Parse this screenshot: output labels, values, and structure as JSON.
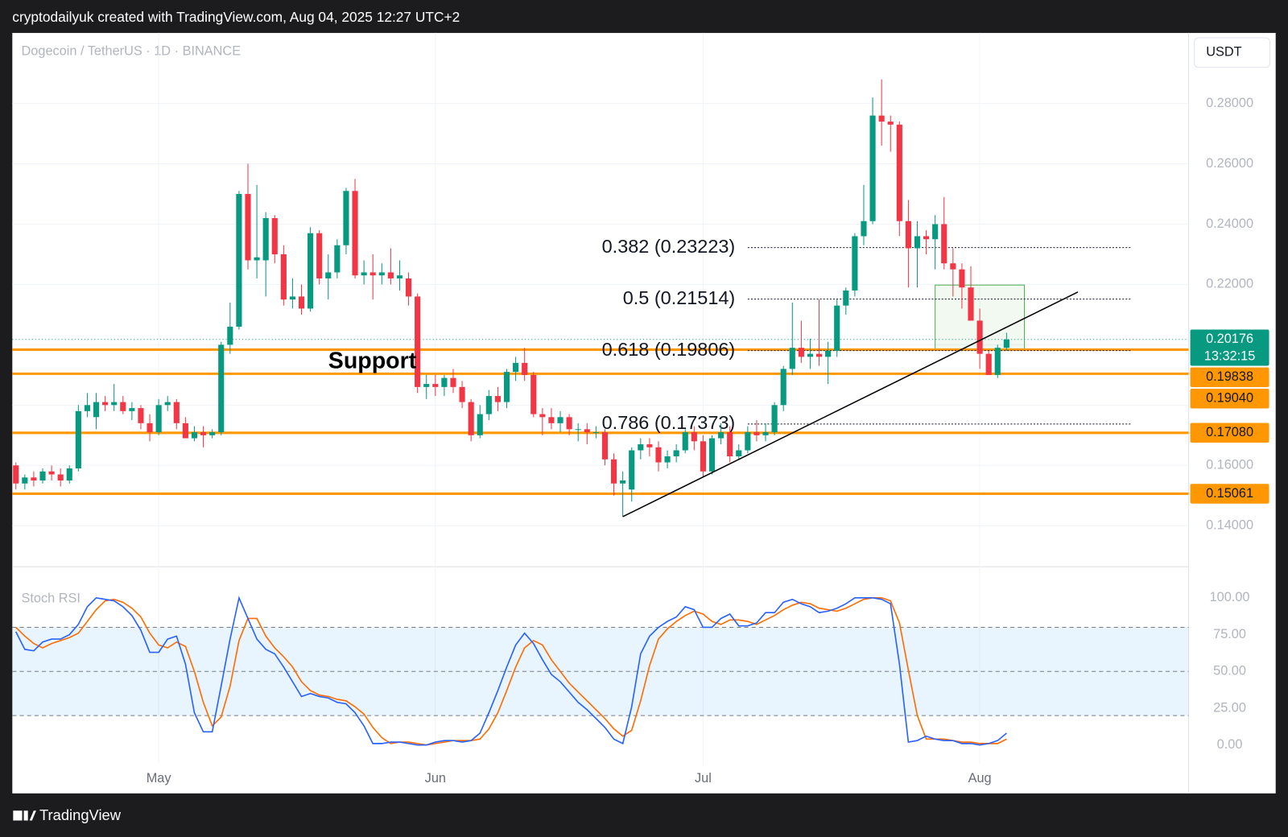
{
  "chart_data": {
    "type": "candlestick",
    "credit": "cryptodailyuk created with TradingView.com, Aug 04, 2025 12:27 UTC+2",
    "title": "Dogecoin / TetherUS · 1D · BINANCE",
    "currency": "USDT",
    "brand": "TradingView",
    "up_color": "#089981",
    "down_color": "#f23645",
    "xlim": [
      -0.4,
      131.4
    ],
    "xticks": [
      {
        "value": 16,
        "label": "May"
      },
      {
        "value": 47,
        "label": "Jun"
      },
      {
        "value": 77,
        "label": "Jul"
      },
      {
        "value": 108,
        "label": "Aug"
      }
    ],
    "ylim": [
      0.1264,
      0.3034
    ],
    "yticks": [
      {
        "value": 0.14,
        "label": "0.14000"
      },
      {
        "value": 0.16,
        "label": "0.16000"
      },
      {
        "value": 0.18,
        "label": "0.18000"
      },
      {
        "value": 0.2,
        "label": "0.20000"
      },
      {
        "value": 0.22,
        "label": "0.22000"
      },
      {
        "value": 0.24,
        "label": "0.24000"
      },
      {
        "value": 0.26,
        "label": "0.26000"
      },
      {
        "value": 0.28,
        "label": "0.28000"
      }
    ],
    "grid": true,
    "ohlc": [
      [
        0.16,
        0.161,
        0.152,
        0.154
      ],
      [
        0.154,
        0.157,
        0.152,
        0.156
      ],
      [
        0.156,
        0.158,
        0.153,
        0.155
      ],
      [
        0.155,
        0.159,
        0.154,
        0.158
      ],
      [
        0.158,
        0.16,
        0.155,
        0.157
      ],
      [
        0.157,
        0.159,
        0.153,
        0.155
      ],
      [
        0.155,
        0.16,
        0.154,
        0.159
      ],
      [
        0.159,
        0.18,
        0.158,
        0.178
      ],
      [
        0.178,
        0.184,
        0.176,
        0.18
      ],
      [
        0.176,
        0.184,
        0.172,
        0.181
      ],
      [
        0.181,
        0.183,
        0.178,
        0.18
      ],
      [
        0.18,
        0.187,
        0.178,
        0.181
      ],
      [
        0.181,
        0.183,
        0.177,
        0.178
      ],
      [
        0.178,
        0.181,
        0.175,
        0.179
      ],
      [
        0.179,
        0.18,
        0.172,
        0.174
      ],
      [
        0.174,
        0.177,
        0.168,
        0.171
      ],
      [
        0.171,
        0.182,
        0.17,
        0.18
      ],
      [
        0.18,
        0.183,
        0.178,
        0.181
      ],
      [
        0.181,
        0.182,
        0.172,
        0.174
      ],
      [
        0.174,
        0.176,
        0.169,
        0.169
      ],
      [
        0.169,
        0.173,
        0.168,
        0.171
      ],
      [
        0.171,
        0.173,
        0.166,
        0.17
      ],
      [
        0.17,
        0.172,
        0.169,
        0.171
      ],
      [
        0.171,
        0.201,
        0.17,
        0.2
      ],
      [
        0.2,
        0.214,
        0.197,
        0.206
      ],
      [
        0.206,
        0.251,
        0.205,
        0.25
      ],
      [
        0.25,
        0.26,
        0.225,
        0.228
      ],
      [
        0.228,
        0.253,
        0.222,
        0.229
      ],
      [
        0.228,
        0.244,
        0.216,
        0.242
      ],
      [
        0.242,
        0.243,
        0.227,
        0.23
      ],
      [
        0.23,
        0.233,
        0.213,
        0.215
      ],
      [
        0.215,
        0.222,
        0.212,
        0.216
      ],
      [
        0.216,
        0.22,
        0.21,
        0.212
      ],
      [
        0.212,
        0.239,
        0.211,
        0.237
      ],
      [
        0.237,
        0.238,
        0.22,
        0.222
      ],
      [
        0.222,
        0.23,
        0.215,
        0.224
      ],
      [
        0.224,
        0.235,
        0.222,
        0.233
      ],
      [
        0.233,
        0.252,
        0.23,
        0.251
      ],
      [
        0.251,
        0.255,
        0.222,
        0.223
      ],
      [
        0.223,
        0.228,
        0.22,
        0.224
      ],
      [
        0.224,
        0.23,
        0.215,
        0.223
      ],
      [
        0.223,
        0.227,
        0.22,
        0.224
      ],
      [
        0.224,
        0.232,
        0.22,
        0.222
      ],
      [
        0.222,
        0.228,
        0.218,
        0.223
      ],
      [
        0.222,
        0.224,
        0.213,
        0.216
      ],
      [
        0.216,
        0.217,
        0.184,
        0.186
      ],
      [
        0.186,
        0.19,
        0.182,
        0.187
      ],
      [
        0.187,
        0.19,
        0.183,
        0.186
      ],
      [
        0.186,
        0.19,
        0.183,
        0.189
      ],
      [
        0.189,
        0.192,
        0.184,
        0.186
      ],
      [
        0.186,
        0.188,
        0.179,
        0.181
      ],
      [
        0.181,
        0.182,
        0.168,
        0.17
      ],
      [
        0.17,
        0.18,
        0.169,
        0.177
      ],
      [
        0.177,
        0.185,
        0.175,
        0.183
      ],
      [
        0.183,
        0.186,
        0.178,
        0.181
      ],
      [
        0.181,
        0.192,
        0.179,
        0.191
      ],
      [
        0.191,
        0.196,
        0.188,
        0.194
      ],
      [
        0.194,
        0.199,
        0.188,
        0.19
      ],
      [
        0.19,
        0.191,
        0.176,
        0.177
      ],
      [
        0.177,
        0.179,
        0.17,
        0.176
      ],
      [
        0.176,
        0.179,
        0.172,
        0.174
      ],
      [
        0.174,
        0.178,
        0.171,
        0.176
      ],
      [
        0.176,
        0.177,
        0.17,
        0.172
      ],
      [
        0.172,
        0.174,
        0.168,
        0.172
      ],
      [
        0.172,
        0.174,
        0.167,
        0.171
      ],
      [
        0.171,
        0.173,
        0.169,
        0.171
      ],
      [
        0.171,
        0.172,
        0.16,
        0.162
      ],
      [
        0.162,
        0.164,
        0.15,
        0.154
      ],
      [
        0.154,
        0.158,
        0.143,
        0.155
      ],
      [
        0.152,
        0.166,
        0.148,
        0.165
      ],
      [
        0.165,
        0.169,
        0.162,
        0.167
      ],
      [
        0.167,
        0.169,
        0.163,
        0.166
      ],
      [
        0.166,
        0.168,
        0.158,
        0.161
      ],
      [
        0.161,
        0.165,
        0.159,
        0.163
      ],
      [
        0.163,
        0.167,
        0.161,
        0.165
      ],
      [
        0.165,
        0.172,
        0.164,
        0.171
      ],
      [
        0.171,
        0.173,
        0.165,
        0.168
      ],
      [
        0.168,
        0.17,
        0.156,
        0.158
      ],
      [
        0.158,
        0.17,
        0.157,
        0.169
      ],
      [
        0.169,
        0.174,
        0.167,
        0.171
      ],
      [
        0.171,
        0.173,
        0.161,
        0.163
      ],
      [
        0.163,
        0.167,
        0.162,
        0.165
      ],
      [
        0.165,
        0.173,
        0.164,
        0.171
      ],
      [
        0.171,
        0.175,
        0.168,
        0.17
      ],
      [
        0.17,
        0.174,
        0.168,
        0.171
      ],
      [
        0.171,
        0.181,
        0.17,
        0.18
      ],
      [
        0.18,
        0.193,
        0.178,
        0.192
      ],
      [
        0.192,
        0.214,
        0.19,
        0.199
      ],
      [
        0.199,
        0.208,
        0.194,
        0.196
      ],
      [
        0.196,
        0.202,
        0.192,
        0.197
      ],
      [
        0.197,
        0.215,
        0.193,
        0.196
      ],
      [
        0.196,
        0.201,
        0.187,
        0.198
      ],
      [
        0.198,
        0.215,
        0.196,
        0.213
      ],
      [
        0.213,
        0.219,
        0.21,
        0.218
      ],
      [
        0.218,
        0.237,
        0.216,
        0.236
      ],
      [
        0.236,
        0.253,
        0.233,
        0.241
      ],
      [
        0.241,
        0.282,
        0.24,
        0.276
      ],
      [
        0.276,
        0.288,
        0.266,
        0.274
      ],
      [
        0.274,
        0.276,
        0.264,
        0.273
      ],
      [
        0.273,
        0.274,
        0.236,
        0.241
      ],
      [
        0.241,
        0.248,
        0.219,
        0.232
      ],
      [
        0.232,
        0.241,
        0.219,
        0.236
      ],
      [
        0.236,
        0.238,
        0.23,
        0.235
      ],
      [
        0.235,
        0.243,
        0.225,
        0.24
      ],
      [
        0.24,
        0.249,
        0.225,
        0.227
      ],
      [
        0.227,
        0.232,
        0.216,
        0.225
      ],
      [
        0.225,
        0.227,
        0.212,
        0.219
      ],
      [
        0.219,
        0.226,
        0.208,
        0.208
      ],
      [
        0.208,
        0.212,
        0.192,
        0.197
      ],
      [
        0.197,
        0.198,
        0.19,
        0.19
      ],
      [
        0.19,
        0.2,
        0.189,
        0.199
      ],
      [
        0.199,
        0.204,
        0.198,
        0.20176
      ]
    ],
    "last_price": {
      "value": 0.20176,
      "label": "0.20176",
      "countdown": "13:32:15",
      "color": "#089981"
    },
    "levels": {
      "color": "#ff9800",
      "values": [
        0.19838,
        0.1904,
        0.1708,
        0.15061
      ],
      "labels": [
        "0.19838",
        "0.19040",
        "0.17080",
        "0.15061"
      ]
    },
    "fib": [
      {
        "label": "0.382 (0.23223)",
        "value": 0.23223
      },
      {
        "label": "0.5 (0.21514)",
        "value": 0.21514
      },
      {
        "label": "0.618 (0.19806)",
        "value": 0.19806
      },
      {
        "label": "0.786 (0.17373)",
        "value": 0.17373
      }
    ],
    "fib_range": [
      82,
      125
    ],
    "trendline": [
      [
        68,
        0.143
      ],
      [
        119,
        0.2175
      ]
    ],
    "box": {
      "x": [
        103,
        113
      ],
      "y": [
        0.1986,
        0.2198
      ]
    },
    "annotation": {
      "text": "Support",
      "x": 35,
      "y": 0.1943
    },
    "indicator": {
      "name": "Stoch RSI",
      "y2lim": [
        -12.8,
        115.6
      ],
      "y2ticks": [
        {
          "value": 0,
          "label": "0.00"
        },
        {
          "value": 25,
          "label": "25.00"
        },
        {
          "value": 50,
          "label": "50.00"
        },
        {
          "value": 75,
          "label": "75.00"
        },
        {
          "value": 100,
          "label": "100.00"
        }
      ],
      "band": [
        20,
        80
      ],
      "mid": 50,
      "series": [
        {
          "color": "#2962ff",
          "axis": "y2",
          "values": [
            77,
            65,
            64,
            70,
            72,
            72,
            75,
            82,
            94,
            100,
            99,
            98,
            94,
            88,
            78,
            63,
            63,
            72,
            74,
            55,
            22,
            9,
            9,
            40,
            72,
            100,
            86,
            72,
            65,
            62,
            53,
            43,
            33,
            35,
            33,
            32,
            29,
            28,
            22,
            13,
            1,
            1,
            2,
            2,
            1,
            0,
            0,
            2,
            3,
            3,
            2,
            3,
            8,
            22,
            37,
            53,
            68,
            76,
            69,
            58,
            48,
            43,
            36,
            29,
            24,
            18,
            12,
            4,
            1,
            26,
            62,
            74,
            80,
            84,
            87,
            94,
            92,
            80,
            80,
            86,
            89,
            81,
            81,
            83,
            90,
            90,
            97,
            99,
            96,
            94,
            90,
            91,
            93,
            96,
            100,
            100,
            100,
            99,
            96,
            55,
            2,
            3,
            6,
            4,
            3,
            3,
            1,
            1,
            0,
            1,
            3,
            8
          ]
        },
        {
          "color": "#ff6d00",
          "axis": "y2",
          "values": [
            80,
            74,
            69,
            66,
            69,
            71,
            73,
            76,
            84,
            92,
            98,
            99,
            97,
            93,
            87,
            76,
            68,
            66,
            70,
            67,
            50,
            29,
            13,
            19,
            40,
            71,
            86,
            86,
            74,
            66,
            60,
            53,
            43,
            37,
            34,
            33,
            31,
            30,
            26,
            21,
            12,
            5,
            1,
            2,
            2,
            1,
            0,
            1,
            2,
            3,
            3,
            3,
            4,
            11,
            22,
            37,
            53,
            66,
            71,
            68,
            58,
            50,
            42,
            36,
            30,
            24,
            18,
            11,
            6,
            10,
            30,
            54,
            72,
            79,
            84,
            88,
            91,
            89,
            84,
            82,
            85,
            85,
            84,
            82,
            85,
            88,
            92,
            95,
            97,
            96,
            93,
            92,
            91,
            93,
            96,
            99,
            100,
            100,
            98,
            83,
            51,
            20,
            4,
            4,
            4,
            3,
            2,
            2,
            1,
            1,
            1,
            4
          ]
        }
      ]
    }
  }
}
